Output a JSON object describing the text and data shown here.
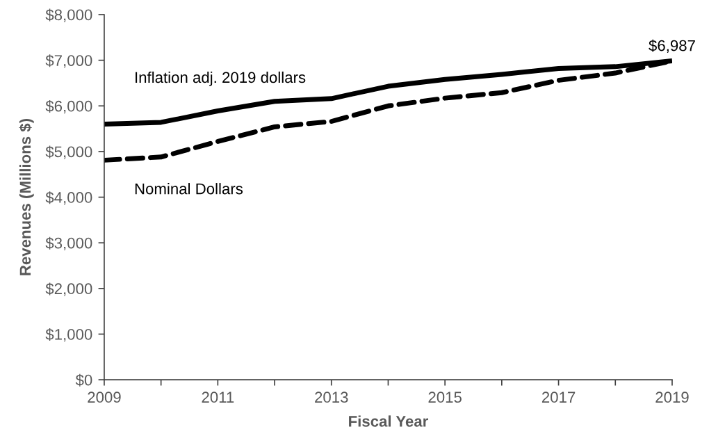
{
  "chart_data": {
    "type": "line",
    "xlabel": "Fiscal Year",
    "ylabel": "Revenues (Millions $)",
    "x": [
      2009,
      2010,
      2011,
      2012,
      2013,
      2014,
      2015,
      2016,
      2017,
      2018,
      2019
    ],
    "series": [
      {
        "name": "Inflation adj. 2019 dollars",
        "color": "#000000",
        "line_style": "solid",
        "values": [
          5600,
          5640,
          5890,
          6100,
          6160,
          6430,
          6580,
          6690,
          6820,
          6860,
          6987
        ]
      },
      {
        "name": "Nominal Dollars",
        "color": "#000000",
        "line_style": "dashed",
        "values": [
          4810,
          4880,
          5220,
          5540,
          5660,
          6000,
          6170,
          6290,
          6560,
          6720,
          6987
        ]
      }
    ],
    "xlim": [
      2009,
      2019
    ],
    "xticks": [
      2009,
      {
        "value": 2010,
        "label": null
      },
      2011,
      {
        "value": 2012,
        "label": null
      },
      2013,
      {
        "value": 2014,
        "label": null
      },
      2015,
      {
        "value": 2016,
        "label": null
      },
      2017,
      {
        "value": 2018,
        "label": null
      },
      2019
    ],
    "ylim": [
      0,
      8000
    ],
    "yticks": [
      {
        "value": 0,
        "label": "$0"
      },
      {
        "value": 1000,
        "label": "$1,000"
      },
      {
        "value": 2000,
        "label": "$2,000"
      },
      {
        "value": 3000,
        "label": "$3,000"
      },
      {
        "value": 4000,
        "label": "$4,000"
      },
      {
        "value": 5000,
        "label": "$5,000"
      },
      {
        "value": 6000,
        "label": "$6,000"
      },
      {
        "value": 7000,
        "label": "$7,000"
      },
      {
        "value": 8000,
        "label": "$8,000"
      }
    ],
    "annotations": [
      {
        "text": "$6,987",
        "x": 2019,
        "y": 6987
      }
    ],
    "legend": false,
    "grid": false,
    "marker": "none"
  }
}
